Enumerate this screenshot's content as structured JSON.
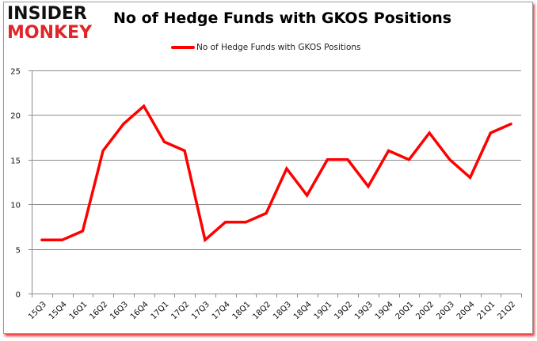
{
  "branding": {
    "logo_line1": "INSIDER",
    "logo_line2": "MONKEY"
  },
  "chart_data": {
    "type": "line",
    "title": "No of Hedge Funds with GKOS Positions",
    "xlabel": "",
    "ylabel": "",
    "ylim": [
      0,
      25
    ],
    "yticks": [
      0,
      5,
      10,
      15,
      20,
      25
    ],
    "grid": true,
    "legend_position": "top",
    "categories": [
      "15Q3",
      "15Q4",
      "16Q1",
      "16Q2",
      "16Q3",
      "16Q4",
      "17Q1",
      "17Q2",
      "17Q3",
      "17Q4",
      "18Q1",
      "18Q2",
      "18Q3",
      "18Q4",
      "19Q1",
      "19Q2",
      "19Q3",
      "19Q4",
      "20Q1",
      "20Q2",
      "20Q3",
      "20Q4",
      "21Q1",
      "21Q2"
    ],
    "series": [
      {
        "name": "No of Hedge Funds with GKOS Positions",
        "color": "#ff0000",
        "values": [
          6,
          6,
          7,
          16,
          19,
          21,
          17,
          16,
          6,
          8,
          8,
          9,
          14,
          11,
          15,
          15,
          12,
          16,
          15,
          18,
          15,
          13,
          18,
          19
        ]
      }
    ]
  },
  "colors": {
    "line": "#ff0000",
    "grid": "#8c8c8c",
    "shadow": "#e60000",
    "logo_red": "#e0262a"
  }
}
